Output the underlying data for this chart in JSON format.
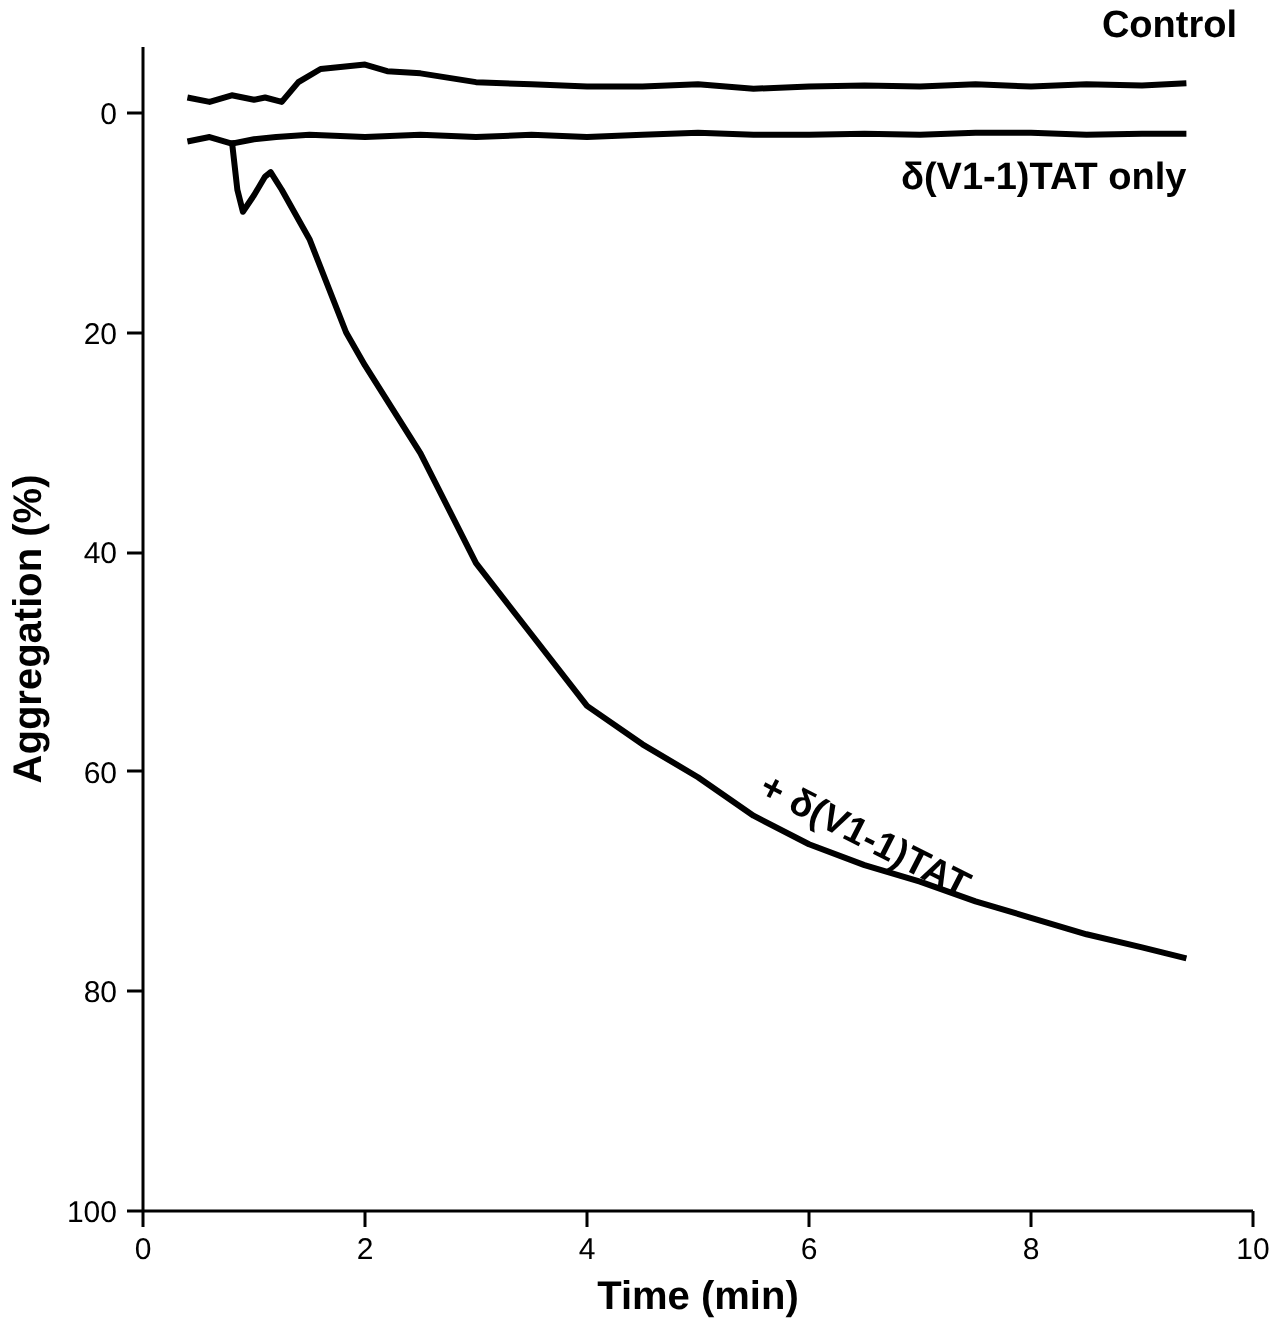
{
  "chart_data": {
    "type": "line",
    "xlabel": "Time (min)",
    "ylabel": "Aggregation (%)",
    "xlim": [
      0,
      10
    ],
    "ylim": [
      100,
      -6
    ],
    "xticks": [
      0,
      2,
      4,
      6,
      8,
      10
    ],
    "yticks": [
      0,
      20,
      40,
      60,
      80,
      100
    ],
    "grid": false,
    "series": [
      {
        "name": "Control",
        "color": "#000000",
        "x": [
          0.4,
          0.6,
          0.8,
          1.0,
          1.1,
          1.25,
          1.4,
          1.6,
          1.8,
          2.0,
          2.2,
          2.5,
          3.0,
          3.5,
          4.0,
          4.5,
          5.0,
          5.5,
          6.0,
          6.5,
          7.0,
          7.5,
          8.0,
          8.5,
          9.0,
          9.4
        ],
        "values": [
          -1.4,
          -1.0,
          -1.6,
          -1.2,
          -1.4,
          -1.0,
          -2.8,
          -4.0,
          -4.2,
          -4.4,
          -3.8,
          -3.6,
          -2.8,
          -2.6,
          -2.4,
          -2.4,
          -2.6,
          -2.2,
          -2.4,
          -2.5,
          -2.4,
          -2.6,
          -2.4,
          -2.6,
          -2.5,
          -2.7
        ]
      },
      {
        "name": "δ(V1-1)TAT only",
        "color": "#000000",
        "x": [
          0.4,
          0.6,
          0.8,
          1.0,
          1.2,
          1.5,
          2.0,
          2.5,
          3.0,
          3.5,
          4.0,
          4.5,
          5.0,
          5.5,
          6.0,
          6.5,
          7.0,
          7.5,
          8.0,
          8.5,
          9.0,
          9.4
        ],
        "values": [
          2.6,
          2.2,
          2.8,
          2.4,
          2.2,
          2.0,
          2.2,
          2.0,
          2.2,
          2.0,
          2.2,
          2.0,
          1.8,
          2.0,
          2.0,
          1.9,
          2.0,
          1.8,
          1.8,
          2.0,
          1.9,
          1.9
        ]
      },
      {
        "name": "+ δ(V1-1)TAT",
        "color": "#000000",
        "x": [
          0.8,
          0.85,
          0.9,
          1.0,
          1.1,
          1.15,
          1.25,
          1.5,
          1.83,
          2.0,
          2.5,
          3.0,
          3.5,
          4.0,
          4.5,
          5.0,
          5.5,
          6.0,
          6.5,
          7.0,
          7.5,
          8.0,
          8.5,
          9.0,
          9.4
        ],
        "values": [
          2.5,
          7.0,
          9.0,
          7.5,
          5.8,
          5.4,
          7.0,
          11.5,
          20.0,
          23.0,
          31.0,
          41.0,
          47.5,
          54.0,
          57.5,
          60.5,
          64.0,
          66.6,
          68.5,
          70.0,
          71.8,
          73.3,
          74.8,
          76.0,
          77.0
        ]
      }
    ]
  }
}
